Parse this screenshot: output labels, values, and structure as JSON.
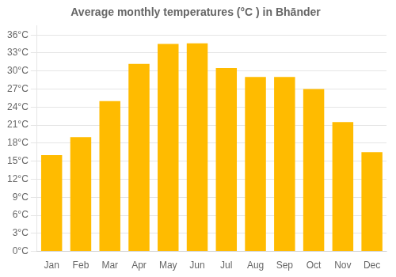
{
  "chart_data": {
    "type": "bar",
    "title": "Average monthly temperatures (°C ) in Bhānder",
    "categories": [
      "Jan",
      "Feb",
      "Mar",
      "Apr",
      "May",
      "Jun",
      "Jul",
      "Aug",
      "Sep",
      "Oct",
      "Nov",
      "Dec"
    ],
    "values": [
      16.0,
      19.0,
      25.0,
      31.2,
      34.5,
      34.6,
      30.5,
      29.0,
      29.0,
      27.0,
      21.5,
      16.5
    ],
    "color": "#FFBB00",
    "ylim": [
      0,
      37.5
    ],
    "yticks": [
      {
        "value": 0,
        "label": "0°C"
      },
      {
        "value": 3,
        "label": "3°C"
      },
      {
        "value": 6,
        "label": "6°C"
      },
      {
        "value": 9,
        "label": "9°C"
      },
      {
        "value": 12,
        "label": "12°C"
      },
      {
        "value": 15,
        "label": "15°C"
      },
      {
        "value": 18,
        "label": "18°C"
      },
      {
        "value": 21,
        "label": "21°C"
      },
      {
        "value": 24,
        "label": "24°C"
      },
      {
        "value": 27,
        "label": "27°C"
      },
      {
        "value": 30,
        "label": "30°C"
      },
      {
        "value": 33,
        "label": "33°C"
      },
      {
        "value": 36,
        "label": "36°C"
      }
    ],
    "grid": true
  }
}
